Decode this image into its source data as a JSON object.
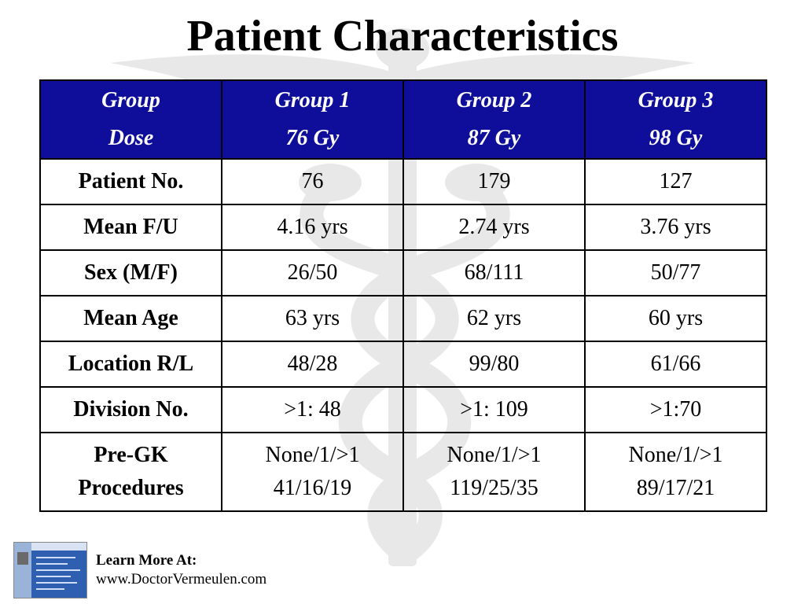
{
  "slide": {
    "title": "Patient Characteristics"
  },
  "table": {
    "header": [
      {
        "line1": "Group",
        "line2": "Dose"
      },
      {
        "line1": "Group 1",
        "line2": "76 Gy"
      },
      {
        "line1": "Group 2",
        "line2": "87 Gy"
      },
      {
        "line1": "Group 3",
        "line2": "98 Gy"
      }
    ],
    "rows": [
      {
        "label": "Patient No.",
        "values": [
          "76",
          "179",
          "127"
        ]
      },
      {
        "label": "Mean F/U",
        "values": [
          "4.16 yrs",
          "2.74 yrs",
          "3.76 yrs"
        ]
      },
      {
        "label": "Sex (M/F)",
        "values": [
          "26/50",
          "68/111",
          "50/77"
        ]
      },
      {
        "label": "Mean Age",
        "values": [
          "63 yrs",
          "62 yrs",
          "60 yrs"
        ]
      },
      {
        "label": "Location R/L",
        "values": [
          "48/28",
          "99/80",
          "61/66"
        ]
      },
      {
        "label": "Division No.",
        "values": [
          ">1: 48",
          ">1: 109",
          ">1:70"
        ]
      }
    ],
    "last_row": {
      "label_line1": "Pre-GK",
      "label_line2": "Procedures",
      "values": [
        {
          "line1": "None/1/>1",
          "line2": "41/16/19"
        },
        {
          "line1": "None/1/>1",
          "line2": "119/25/35"
        },
        {
          "line1": "None/1/>1",
          "line2": "89/17/21"
        }
      ]
    }
  },
  "footer": {
    "label": "Learn More At:",
    "url": "www.DoctorVermeulen.com"
  },
  "colors": {
    "header_bg": "#0e0e9a",
    "header_text": "#ffffff",
    "watermark": "#e6e6e6"
  },
  "icons": {
    "watermark": "caduceus-icon"
  }
}
